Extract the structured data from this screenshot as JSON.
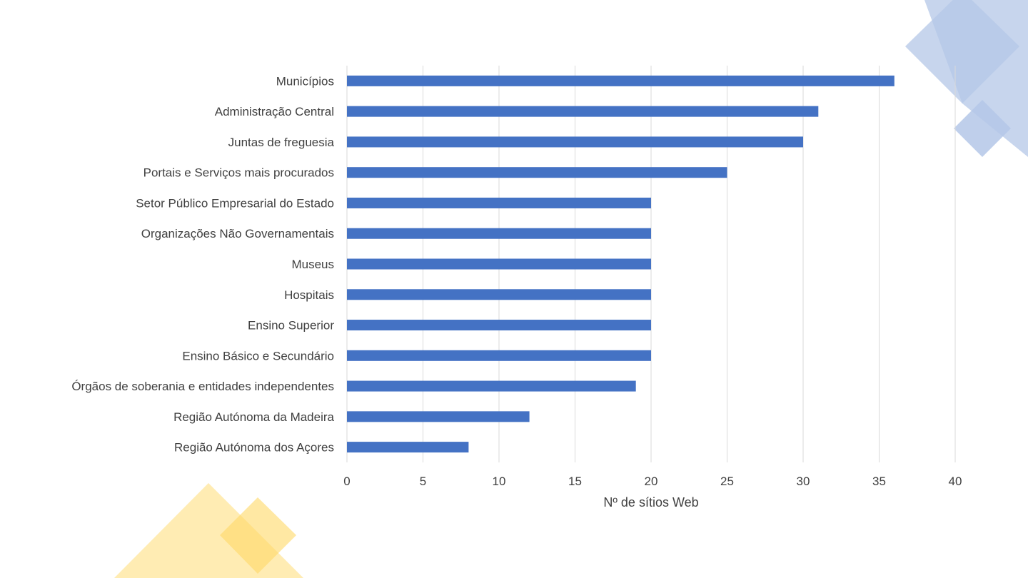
{
  "chart_data": {
    "type": "bar",
    "orientation": "horizontal",
    "categories": [
      "Municípios",
      "Administração Central",
      "Juntas de freguesia",
      "Portais e Serviços mais procurados",
      "Setor Público Empresarial do Estado",
      "Organizações Não Governamentais",
      "Museus",
      "Hospitais",
      "Ensino Superior",
      "Ensino Básico e Secundário",
      "Órgãos de soberania e entidades independentes",
      "Região Autónoma da Madeira",
      "Região Autónoma dos Açores"
    ],
    "values": [
      36,
      31,
      30,
      25,
      20,
      20,
      20,
      20,
      20,
      20,
      19,
      12,
      8
    ],
    "title": "",
    "xlabel": "Nº de sítios Web",
    "ylabel": "",
    "xlim": [
      0,
      40
    ],
    "xticks": [
      0,
      5,
      10,
      15,
      20,
      25,
      30,
      35,
      40
    ],
    "grid": "vertical",
    "legend": "none",
    "bar_color": "#4472C4",
    "grid_color": "#D9D9D9"
  },
  "decor": {
    "blue_color": "#B4C7E7",
    "yellow_color": "#FFE699",
    "yellow_strong": "#FFD966"
  }
}
